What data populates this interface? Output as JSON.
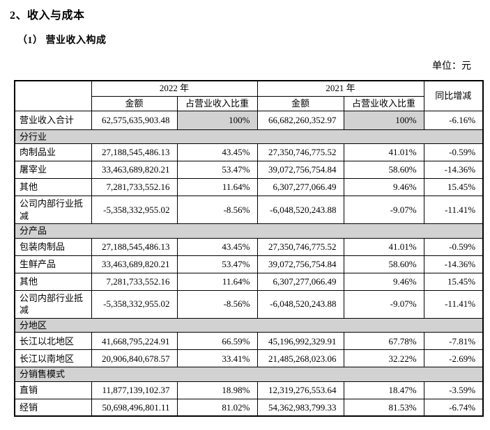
{
  "page": {
    "title": "2、收入与成本",
    "subtitle": "（1） 营业收入构成",
    "unit_label": "单位：元"
  },
  "colors": {
    "section_bg": "#d2d2d2",
    "border": "#000000",
    "page_bg": "#ffffff"
  },
  "table": {
    "header": {
      "col_2022": "2022 年",
      "col_2021": "2021 年",
      "amount": "金额",
      "ratio": "占营业收入比重",
      "yoy": "同比增减"
    },
    "rows": [
      {
        "type": "data",
        "total": true,
        "label": "营业收入合计",
        "cells": [
          "62,575,635,903.48",
          "100%",
          "66,682,260,352.97",
          "100%",
          "-6.16%"
        ]
      },
      {
        "type": "section",
        "label": "分行业"
      },
      {
        "type": "data",
        "label": "肉制品业",
        "cells": [
          "27,188,545,486.13",
          "43.45%",
          "27,350,746,775.52",
          "41.01%",
          "-0.59%"
        ]
      },
      {
        "type": "data",
        "label": "屠宰业",
        "cells": [
          "33,463,689,820.21",
          "53.47%",
          "39,072,756,754.84",
          "58.60%",
          "-14.36%"
        ]
      },
      {
        "type": "data",
        "label": "其他",
        "cells": [
          "7,281,733,552.16",
          "11.64%",
          "6,307,277,066.49",
          "9.46%",
          "15.45%"
        ]
      },
      {
        "type": "data",
        "label": "公司内部行业抵减",
        "cells": [
          "-5,358,332,955.02",
          "-8.56%",
          "-6,048,520,243.88",
          "-9.07%",
          "-11.41%"
        ]
      },
      {
        "type": "section",
        "label": "分产品"
      },
      {
        "type": "data",
        "label": "包装肉制品",
        "cells": [
          "27,188,545,486.13",
          "43.45%",
          "27,350,746,775.52",
          "41.01%",
          "-0.59%"
        ]
      },
      {
        "type": "data",
        "label": "生鲜产品",
        "cells": [
          "33,463,689,820.21",
          "53.47%",
          "39,072,756,754.84",
          "58.60%",
          "-14.36%"
        ]
      },
      {
        "type": "data",
        "label": "其他",
        "cells": [
          "7,281,733,552.16",
          "11.64%",
          "6,307,277,066.49",
          "9.46%",
          "15.45%"
        ]
      },
      {
        "type": "data",
        "label": "公司内部行业抵减",
        "cells": [
          "-5,358,332,955.02",
          "-8.56%",
          "-6,048,520,243.88",
          "-9.07%",
          "-11.41%"
        ]
      },
      {
        "type": "section",
        "label": "分地区"
      },
      {
        "type": "data",
        "label": "长江以北地区",
        "cells": [
          "41,668,795,224.91",
          "66.59%",
          "45,196,992,329.91",
          "67.78%",
          "-7.81%"
        ]
      },
      {
        "type": "data",
        "label": "长江以南地区",
        "cells": [
          "20,906,840,678.57",
          "33.41%",
          "21,485,268,023.06",
          "32.22%",
          "-2.69%"
        ]
      },
      {
        "type": "section",
        "label": "分销售模式"
      },
      {
        "type": "data",
        "label": "直销",
        "cells": [
          "11,877,139,102.37",
          "18.98%",
          "12,319,276,553.64",
          "18.47%",
          "-3.59%"
        ]
      },
      {
        "type": "data",
        "label": "经销",
        "cells": [
          "50,698,496,801.11",
          "81.02%",
          "54,362,983,799.33",
          "81.53%",
          "-6.74%"
        ]
      }
    ]
  }
}
